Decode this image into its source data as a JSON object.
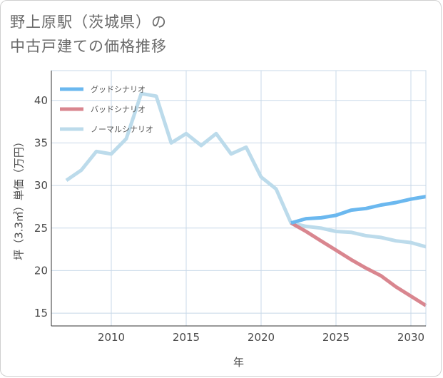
{
  "title": {
    "line1": "野上原駅（茨城県）の",
    "line2": "中古戸建ての価格推移"
  },
  "colors": {
    "good": "#6bb8ef",
    "bad": "#d9868f",
    "normal": "#bcdbeb",
    "grid": "#c8d8e8",
    "axis": "#333333"
  },
  "chart_data": {
    "type": "line",
    "xlabel": "年",
    "ylabel": "坪（3.3㎡）単価（万円）",
    "xlim": [
      2006,
      2031
    ],
    "ylim": [
      13.5,
      43.5
    ],
    "xticks": [
      2010,
      2015,
      2020,
      2025,
      2030
    ],
    "yticks": [
      15,
      20,
      25,
      30,
      35,
      40
    ],
    "legend_position": "top-left",
    "series": [
      {
        "name": "グッドシナリオ",
        "key": "good",
        "x": [
          2022,
          2023,
          2024,
          2025,
          2026,
          2027,
          2028,
          2029,
          2030,
          2031
        ],
        "values": [
          25.6,
          26.1,
          26.2,
          26.5,
          27.1,
          27.3,
          27.7,
          28.0,
          28.4,
          28.7
        ]
      },
      {
        "name": "バッドシナリオ",
        "key": "bad",
        "x": [
          2022,
          2023,
          2024,
          2025,
          2026,
          2027,
          2028,
          2029,
          2030,
          2031
        ],
        "values": [
          25.6,
          24.6,
          23.5,
          22.4,
          21.3,
          20.3,
          19.4,
          18.1,
          17.0,
          15.9
        ]
      },
      {
        "name": "ノーマルシナリオ",
        "key": "normal",
        "x": [
          2007,
          2008,
          2009,
          2010,
          2011,
          2012,
          2013,
          2014,
          2015,
          2016,
          2017,
          2018,
          2019,
          2020,
          2021,
          2022,
          2023,
          2024,
          2025,
          2026,
          2027,
          2028,
          2029,
          2030,
          2031
        ],
        "values": [
          30.6,
          31.8,
          34.0,
          33.7,
          35.5,
          40.8,
          40.5,
          35.0,
          36.1,
          34.7,
          36.1,
          33.7,
          34.5,
          31.0,
          29.6,
          25.6,
          25.2,
          25.0,
          24.6,
          24.5,
          24.1,
          23.9,
          23.5,
          23.3,
          22.8
        ]
      }
    ]
  }
}
